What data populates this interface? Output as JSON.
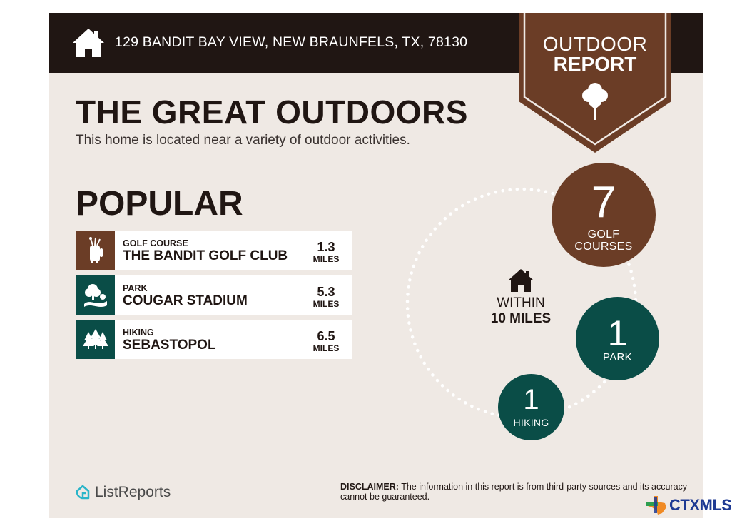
{
  "header": {
    "address": "129 BANDIT BAY VIEW, NEW BRAUNFELS, TX, 78130",
    "badge_line1": "OUTDOOR",
    "badge_line2": "REPORT"
  },
  "main": {
    "title": "THE GREAT OUTDOORS",
    "subtitle": "This home is located near a variety of outdoor activities.",
    "popular_heading": "POPULAR"
  },
  "popular": [
    {
      "category": "GOLF COURSE",
      "name": "THE BANDIT GOLF CLUB",
      "distance": "1.3",
      "unit": "MILES",
      "icon": "golf-bag-icon",
      "color": "#6b3d26"
    },
    {
      "category": "PARK",
      "name": "COUGAR STADIUM",
      "distance": "5.3",
      "unit": "MILES",
      "icon": "park-icon",
      "color": "#0a4d47"
    },
    {
      "category": "HIKING",
      "name": "SEBASTOPOL",
      "distance": "6.5",
      "unit": "MILES",
      "icon": "pine-trees-icon",
      "color": "#0a4d47"
    }
  ],
  "summary": {
    "within_label": "WITHIN",
    "within_distance": "10 MILES",
    "golf": {
      "count": "7",
      "label_line1": "GOLF",
      "label_line2": "COURSES",
      "color": "#6b3d26"
    },
    "park": {
      "count": "1",
      "label": "PARK",
      "color": "#0a4d47"
    },
    "hiking": {
      "count": "1",
      "label": "HIKING",
      "color": "#0a4d47"
    }
  },
  "footer": {
    "brand": "ListReports",
    "disclaimer_label": "DISCLAIMER:",
    "disclaimer_text": " The information in this report is from third-party sources and its accuracy cannot be guaranteed.",
    "mls_logo": "CTXMLS"
  },
  "colors": {
    "dark": "#201613",
    "brown": "#6b3d26",
    "teal": "#0a4d47",
    "background": "#efe9e4"
  }
}
